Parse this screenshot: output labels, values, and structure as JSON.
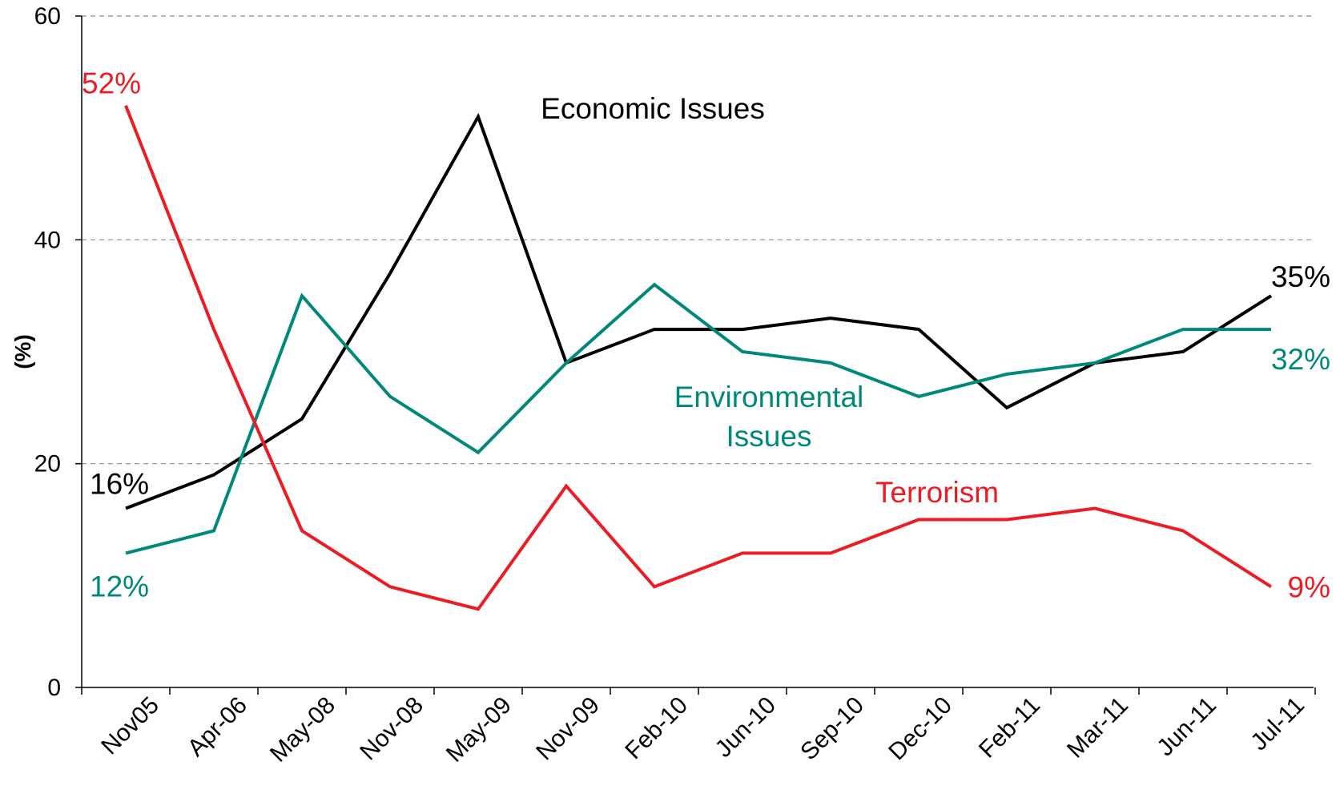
{
  "chart_data": {
    "type": "line",
    "title": "",
    "xlabel": "",
    "ylabel": "(%)",
    "ylim": [
      0,
      60
    ],
    "yticks": [
      0,
      20,
      40,
      60
    ],
    "grid": "horizontal-dashed",
    "categories": [
      "Nov05",
      "Apr-06",
      "May-08",
      "Nov-08",
      "May-09",
      "Nov-09",
      "Feb-10",
      "Jun-10",
      "Sep-10",
      "Dec-10",
      "Feb-11",
      "Mar-11",
      "Jun-11",
      "Jul-11"
    ],
    "series": [
      {
        "name": "Economic Issues",
        "color": "#000000",
        "values": [
          16,
          19,
          24,
          37,
          51,
          29,
          32,
          32,
          33,
          32,
          25,
          29,
          30,
          35
        ],
        "labels": [
          {
            "index": 0,
            "text": "16%"
          },
          {
            "index": 13,
            "text": "35%"
          }
        ]
      },
      {
        "name": "Environmental Issues",
        "name_lines": [
          "Environmental",
          "Issues"
        ],
        "color": "#00897B",
        "values": [
          12,
          14,
          35,
          26,
          21,
          29,
          36,
          30,
          29,
          26,
          28,
          29,
          32,
          32
        ],
        "labels": [
          {
            "index": 0,
            "text": "12%"
          },
          {
            "index": 13,
            "text": "32%"
          }
        ]
      },
      {
        "name": "Terrorism",
        "color": "#ED1C24",
        "values": [
          52,
          32,
          14,
          9,
          7,
          18,
          9,
          12,
          12,
          15,
          15,
          16,
          14,
          9
        ],
        "labels": [
          {
            "index": 0,
            "text": "52%"
          },
          {
            "index": 13,
            "text": "9%"
          }
        ]
      }
    ]
  }
}
